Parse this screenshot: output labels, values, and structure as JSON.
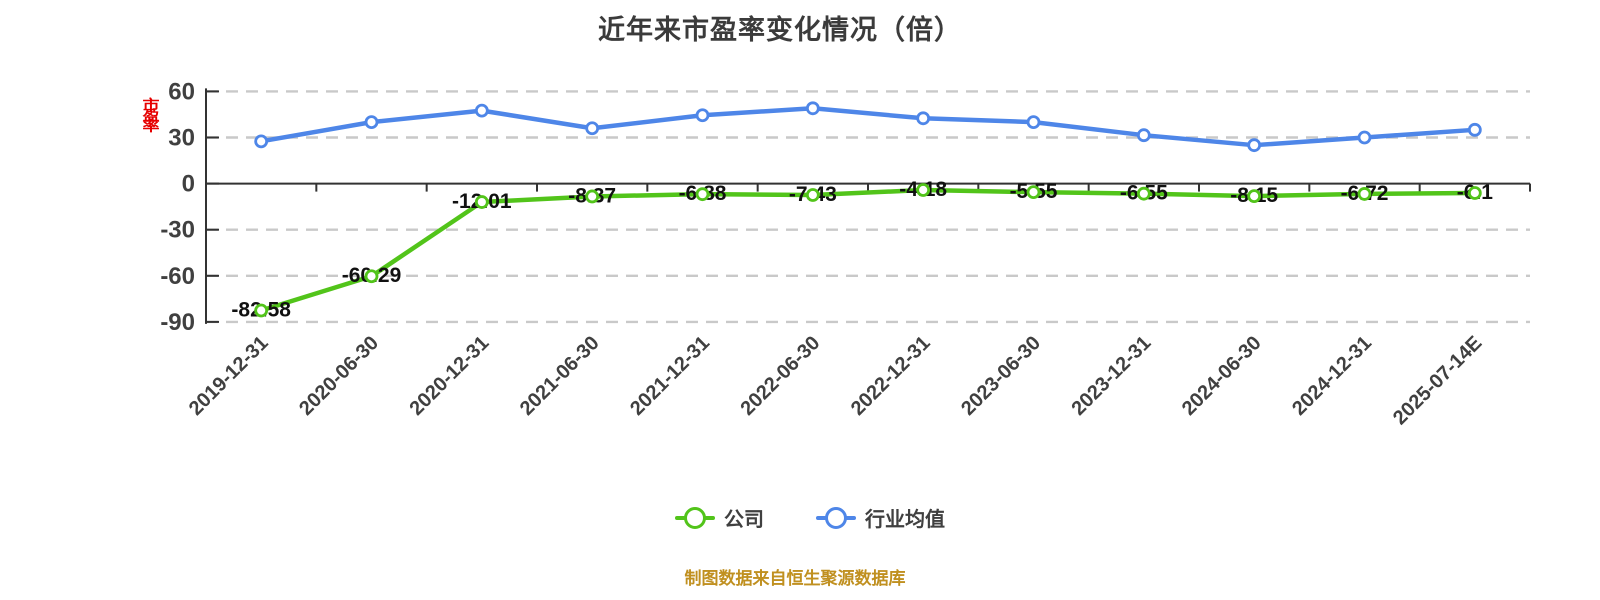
{
  "title": "近年来市盈率变化情况（倍）",
  "y_axis_title": "市盈率",
  "caption": "制图数据来自恒生聚源数据库",
  "legend": [
    {
      "label": "公司",
      "color": "#52c41a"
    },
    {
      "label": "行业均值",
      "color": "#4e86e8"
    }
  ],
  "colors": {
    "company_series": "#52c41a",
    "industry_series": "#4e86e8",
    "grid_line": "#c9c9c9",
    "axis_line": "#333333",
    "axis_text": "#404040",
    "data_label": "#111111",
    "title_text": "#3b3b3b",
    "caption_text": "#c09020",
    "y_axis_title_text": "#e60000",
    "marker_fill": "#ffffff"
  },
  "chart_data": {
    "type": "line",
    "title": "近年来市盈率变化情况（倍）",
    "categories": [
      "2019-12-31",
      "2020-06-30",
      "2020-12-31",
      "2021-06-30",
      "2021-12-31",
      "2022-06-30",
      "2022-12-31",
      "2023-06-30",
      "2023-12-31",
      "2024-06-30",
      "2024-12-31",
      "2025-07-14E"
    ],
    "series": [
      {
        "key": "company",
        "name": "公司",
        "color": "#52c41a",
        "values": [
          -82.58,
          -60.29,
          -12.01,
          -8.37,
          -6.88,
          -7.43,
          -4.18,
          -5.55,
          -6.55,
          -8.15,
          -6.72,
          -6.1
        ],
        "point_labels": [
          "-82.58",
          "-60.29",
          "-12.01",
          "-8.37",
          "-6.88",
          "-7.43",
          "-4.18",
          "-5.55",
          "-6.55",
          "-8.15",
          "-6.72",
          "-6.1"
        ],
        "labels_shown": true,
        "estimated": false
      },
      {
        "key": "industry",
        "name": "行业均值",
        "color": "#4e86e8",
        "values": [
          27.5,
          40,
          47.5,
          36,
          44.5,
          49,
          42.5,
          40,
          31.5,
          25,
          30,
          35
        ],
        "point_labels": [],
        "labels_shown": false,
        "estimated": true
      }
    ],
    "ylim": [
      -90,
      60
    ],
    "y_ticks": [
      60,
      30,
      0,
      -30,
      -60,
      -90
    ],
    "xlabel": "",
    "ylabel": "市盈率",
    "grid": "horizontal dashed",
    "legend_position": "bottom",
    "x_label_rotation_deg": 45
  }
}
